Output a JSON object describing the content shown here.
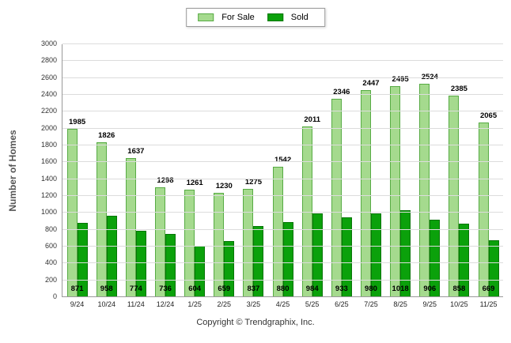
{
  "footer": "Copyright © Trendgraphix, Inc.",
  "chart_data": {
    "type": "bar",
    "title": "",
    "xlabel": "",
    "ylabel": "Number of Homes",
    "ylim": [
      0,
      3000
    ],
    "ytick_step": 200,
    "grid": true,
    "legend_position": "top-center",
    "categories": [
      "9/24",
      "10/24",
      "11/24",
      "12/24",
      "1/25",
      "2/25",
      "3/25",
      "4/25",
      "5/25",
      "6/25",
      "7/25",
      "8/25",
      "9/25",
      "10/25",
      "11/25"
    ],
    "series": [
      {
        "name": "For Sale",
        "color": "#a5da8e",
        "border_color": "#57ab44",
        "values": [
          1985,
          1826,
          1637,
          1298,
          1261,
          1230,
          1275,
          1542,
          2011,
          2346,
          2447,
          2495,
          2524,
          2385,
          2065
        ]
      },
      {
        "name": "Sold",
        "color": "#0ba10b",
        "border_color": "#077507",
        "values": [
          871,
          958,
          774,
          736,
          604,
          659,
          837,
          880,
          984,
          933,
          980,
          1018,
          906,
          858,
          669
        ]
      }
    ]
  }
}
